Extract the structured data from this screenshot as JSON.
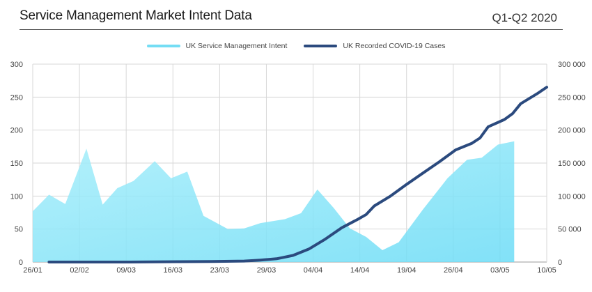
{
  "header": {
    "title": "Service Management Market Intent Data",
    "period": "Q1-Q2 2020"
  },
  "chart_data": {
    "type": "area",
    "title": "Service Management Market Intent Data",
    "subtitle": "Q1-Q2 2020",
    "legend": "top-center",
    "grid": true,
    "x": [
      "26/01",
      "02/02",
      "09/03",
      "16/03",
      "23/03",
      "29/03",
      "04/04",
      "14/04",
      "19/04",
      "26/04",
      "03/05",
      "10/05"
    ],
    "ylim_left": [
      0,
      300
    ],
    "ylim_right": [
      0,
      300000
    ],
    "yticks_left": [
      "0",
      "50",
      "100",
      "150",
      "200",
      "250",
      "300"
    ],
    "yticks_right": [
      "0",
      "50 000",
      "100 000",
      "150 000",
      "200 000",
      "250 000",
      "300 000"
    ],
    "series": [
      {
        "name": "UK Service Management Intent",
        "type": "area",
        "axis": "left",
        "color": "#6FDDF5",
        "points": [
          [
            0.0,
            77
          ],
          [
            1.0,
            102
          ],
          [
            2.0,
            88
          ],
          [
            3.3,
            172
          ],
          [
            4.3,
            87
          ],
          [
            5.2,
            112
          ],
          [
            6.2,
            123
          ],
          [
            7.5,
            153
          ],
          [
            8.5,
            127
          ],
          [
            9.5,
            137
          ],
          [
            10.5,
            70
          ],
          [
            12.0,
            50
          ],
          [
            13.0,
            51
          ],
          [
            14.0,
            59
          ],
          [
            15.5,
            65
          ],
          [
            16.5,
            74
          ],
          [
            17.5,
            110
          ],
          [
            18.5,
            82
          ],
          [
            19.5,
            51
          ],
          [
            20.5,
            38
          ],
          [
            21.5,
            18
          ],
          [
            22.5,
            30
          ],
          [
            24.0,
            80
          ],
          [
            25.5,
            127
          ],
          [
            26.7,
            155
          ],
          [
            27.6,
            158
          ],
          [
            28.6,
            178
          ],
          [
            29.6,
            183
          ]
        ]
      },
      {
        "name": "UK Recorded COVID-19 Cases",
        "type": "line",
        "axis": "right",
        "color": "#2B4A7E",
        "points": [
          [
            1.0,
            0
          ],
          [
            3.0,
            0
          ],
          [
            6.0,
            0
          ],
          [
            9.0,
            500
          ],
          [
            11.0,
            800
          ],
          [
            13.0,
            1500
          ],
          [
            14.0,
            3000
          ],
          [
            15.0,
            5000
          ],
          [
            16.0,
            10000
          ],
          [
            17.0,
            20000
          ],
          [
            18.0,
            35000
          ],
          [
            19.0,
            52000
          ],
          [
            20.0,
            65000
          ],
          [
            20.5,
            72000
          ],
          [
            21.0,
            85000
          ],
          [
            22.0,
            100000
          ],
          [
            23.0,
            118000
          ],
          [
            24.0,
            135000
          ],
          [
            25.0,
            152000
          ],
          [
            26.0,
            170000
          ],
          [
            27.0,
            180000
          ],
          [
            27.5,
            188000
          ],
          [
            28.0,
            205000
          ],
          [
            29.0,
            216000
          ],
          [
            29.5,
            225000
          ],
          [
            30.0,
            240000
          ],
          [
            31.0,
            255000
          ],
          [
            31.6,
            265000
          ]
        ]
      }
    ]
  }
}
